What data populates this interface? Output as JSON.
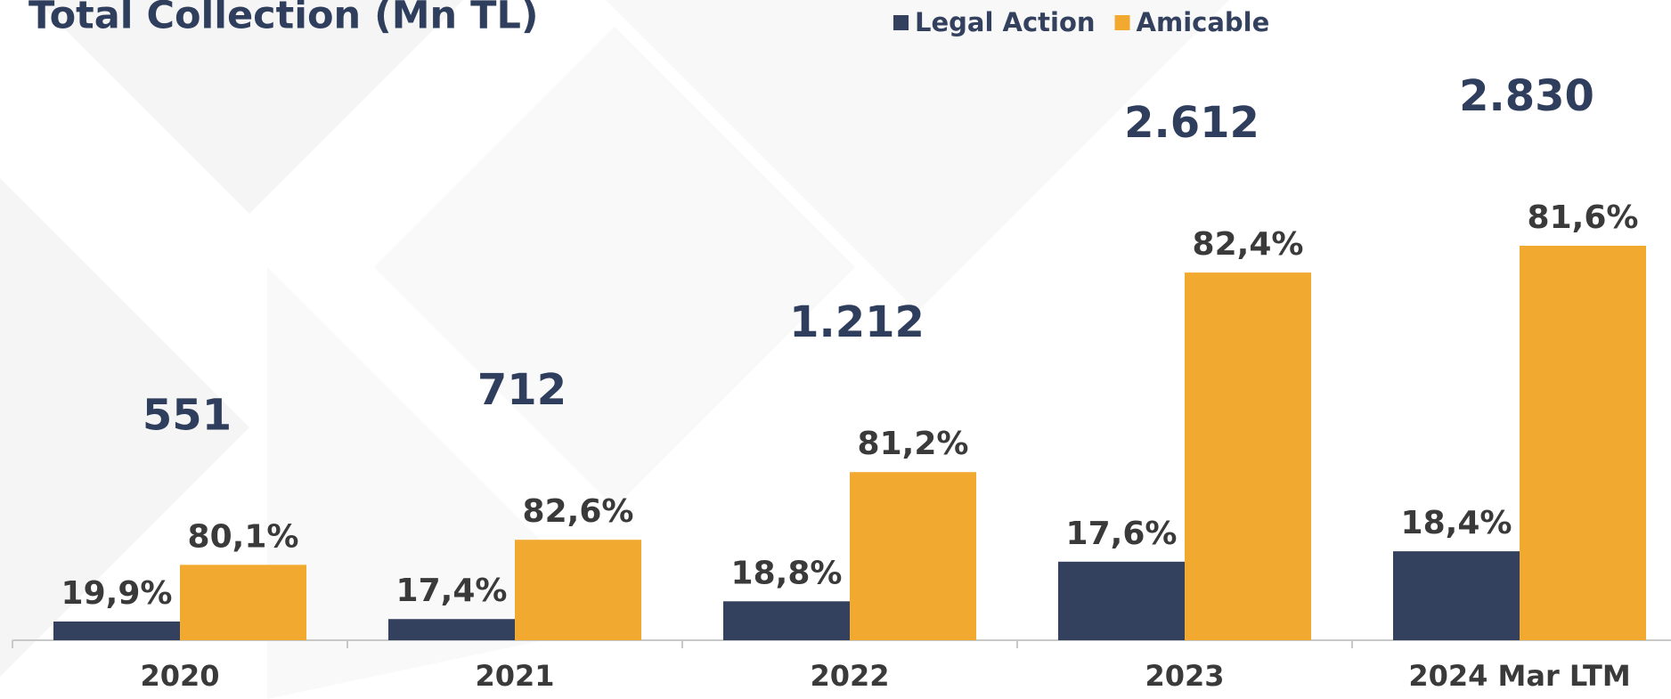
{
  "chart_data": {
    "type": "bar",
    "title": "Total Collection (Mn TL)",
    "categories": [
      "2020",
      "2021",
      "2022",
      "2023",
      "2024 Mar LTM"
    ],
    "totals": [
      551,
      712,
      1212,
      2612,
      2830
    ],
    "total_labels": [
      "551",
      "712",
      "1.212",
      "2.612",
      "2.830"
    ],
    "series": [
      {
        "name": "Legal Action",
        "color": "#33415e",
        "values": [
          19.9,
          17.4,
          18.8,
          17.6,
          18.4
        ],
        "value_labels": [
          "19,9%",
          "17,4%",
          "18,8%",
          "17,6%",
          "18,4%"
        ]
      },
      {
        "name": "Amicable",
        "color": "#f2a930",
        "values": [
          80.1,
          82.6,
          81.2,
          82.4,
          81.6
        ],
        "value_labels": [
          "80,1%",
          "82,6%",
          "81,2%",
          "82,4%",
          "81,6%"
        ]
      }
    ],
    "legend": "top"
  }
}
